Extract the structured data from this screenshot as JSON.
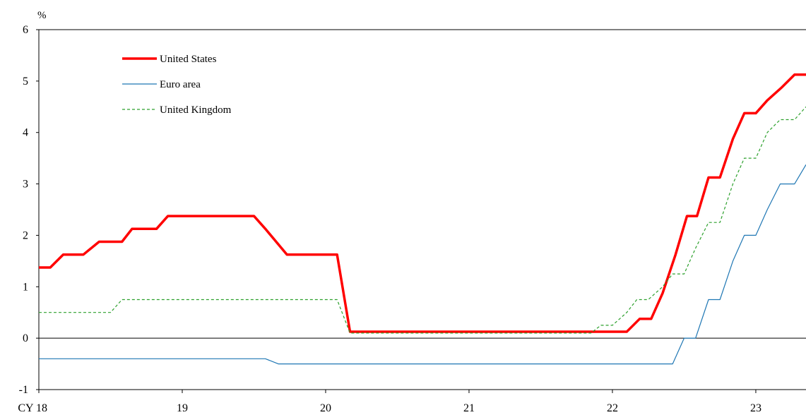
{
  "chart_data": {
    "type": "line",
    "title": "",
    "ylabel": "%",
    "xlabel": "",
    "ylim": [
      -1,
      6
    ],
    "xlim": [
      2018,
      2023.35
    ],
    "y_ticks": [
      "6",
      "5",
      "4",
      "3",
      "2",
      "1",
      "0",
      "-1"
    ],
    "y_tick_values": [
      6,
      5,
      4,
      3,
      2,
      1,
      0,
      -1
    ],
    "x_ticks": [
      "CY 18",
      "19",
      "20",
      "21",
      "22",
      "23"
    ],
    "x_tick_values": [
      2018,
      2019,
      2020,
      2021,
      2022,
      2023
    ],
    "legend_position": "top-left",
    "series": [
      {
        "name": "United States",
        "color": "#ff0000",
        "style": "solid-thick",
        "x": [
          2018.0,
          2018.08,
          2018.17,
          2018.31,
          2018.42,
          2018.58,
          2018.65,
          2018.82,
          2018.9,
          2019.5,
          2019.58,
          2019.73,
          2020.08,
          2020.17,
          2021.1,
          2022.1,
          2022.19,
          2022.27,
          2022.35,
          2022.44,
          2022.52,
          2022.59,
          2022.67,
          2022.75,
          2022.84,
          2022.92,
          2023.0,
          2023.08,
          2023.18,
          2023.27,
          2023.35
        ],
        "y": [
          1.375,
          1.375,
          1.625,
          1.625,
          1.875,
          1.875,
          2.125,
          2.125,
          2.375,
          2.375,
          2.125,
          1.625,
          1.625,
          0.125,
          0.125,
          0.125,
          0.375,
          0.375,
          0.875,
          1.625,
          2.375,
          2.375,
          3.125,
          3.125,
          3.875,
          4.375,
          4.375,
          4.625,
          4.875,
          5.125,
          5.125
        ]
      },
      {
        "name": "Euro area",
        "color": "#1f77b4",
        "style": "solid-thin",
        "x": [
          2018.0,
          2019.58,
          2019.67,
          2022.42,
          2022.5,
          2022.58,
          2022.67,
          2022.75,
          2022.84,
          2022.92,
          2023.0,
          2023.08,
          2023.17,
          2023.27,
          2023.35
        ],
        "y": [
          -0.4,
          -0.4,
          -0.5,
          -0.5,
          0.0,
          0.0,
          0.75,
          0.75,
          1.5,
          2.0,
          2.0,
          2.5,
          3.0,
          3.0,
          3.375
        ]
      },
      {
        "name": "United Kingdom",
        "color": "#2ca02c",
        "style": "dashed",
        "x": [
          2018.0,
          2018.5,
          2018.58,
          2020.08,
          2020.17,
          2021.85,
          2021.92,
          2022.0,
          2022.1,
          2022.17,
          2022.25,
          2022.35,
          2022.42,
          2022.5,
          2022.58,
          2022.67,
          2022.75,
          2022.84,
          2022.92,
          2023.0,
          2023.08,
          2023.17,
          2023.27,
          2023.35
        ],
        "y": [
          0.5,
          0.5,
          0.75,
          0.75,
          0.1,
          0.1,
          0.25,
          0.25,
          0.5,
          0.75,
          0.75,
          1.0,
          1.25,
          1.25,
          1.75,
          2.25,
          2.25,
          3.0,
          3.5,
          3.5,
          4.0,
          4.25,
          4.25,
          4.5
        ]
      }
    ]
  }
}
